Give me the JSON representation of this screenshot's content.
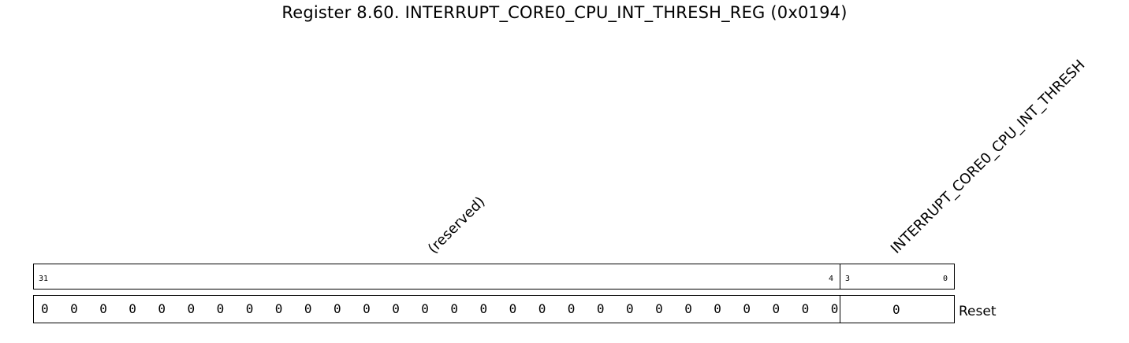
{
  "title": "Register 8.60. INTERRUPT_CORE0_CPU_INT_THRESH_REG (0x0194)",
  "fields": [
    {
      "name": "(reserved)",
      "bit_high": "31",
      "bit_low": "4",
      "reset": "0"
    },
    {
      "name": "INTERRUPT_CORE0_CPU_INT_THRESH",
      "bit_high": "3",
      "bit_low": "0",
      "reset": "0"
    }
  ],
  "reserved_reset_bits": [
    "0",
    "0",
    "0",
    "0",
    "0",
    "0",
    "0",
    "0",
    "0",
    "0",
    "0",
    "0",
    "0",
    "0",
    "0",
    "0",
    "0",
    "0",
    "0",
    "0",
    "0",
    "0",
    "0",
    "0",
    "0",
    "0",
    "0",
    "0"
  ],
  "reset_label": "Reset"
}
